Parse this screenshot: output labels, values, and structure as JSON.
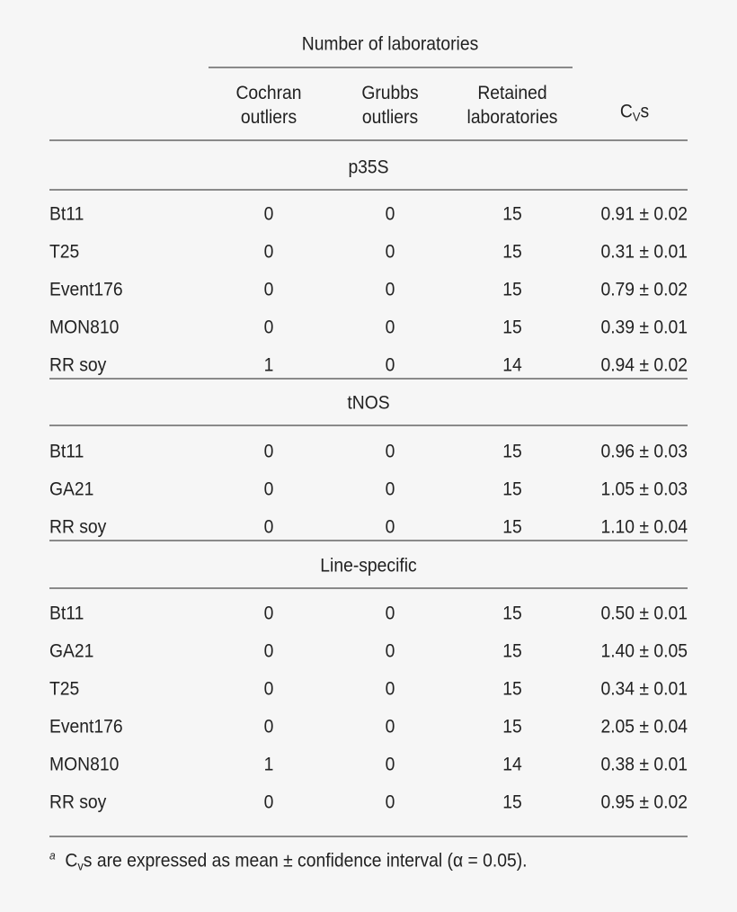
{
  "header": {
    "group_label": "Number of laboratories",
    "columns": [
      {
        "line1": "Cochran",
        "line2": "outliers"
      },
      {
        "line1": "Grubbs",
        "line2": "outliers"
      },
      {
        "line1": "Retained",
        "line2": "laboratories"
      }
    ],
    "cvs_main": "C",
    "cvs_sub": "V",
    "cvs_tail": "s"
  },
  "sections": [
    {
      "title": "p35S",
      "rows": [
        {
          "name": "Bt11",
          "cochran": "0",
          "grubbs": "0",
          "retained": "15",
          "cvs": "0.91 ± 0.02"
        },
        {
          "name": "T25",
          "cochran": "0",
          "grubbs": "0",
          "retained": "15",
          "cvs": "0.31 ± 0.01"
        },
        {
          "name": "Event176",
          "cochran": "0",
          "grubbs": "0",
          "retained": "15",
          "cvs": "0.79 ± 0.02"
        },
        {
          "name": "MON810",
          "cochran": "0",
          "grubbs": "0",
          "retained": "15",
          "cvs": "0.39 ± 0.01"
        },
        {
          "name": "RR soy",
          "cochran": "1",
          "grubbs": "0",
          "retained": "14",
          "cvs": "0.94 ± 0.02"
        }
      ]
    },
    {
      "title": "tNOS",
      "rows": [
        {
          "name": "Bt11",
          "cochran": "0",
          "grubbs": "0",
          "retained": "15",
          "cvs": "0.96 ± 0.03"
        },
        {
          "name": "GA21",
          "cochran": "0",
          "grubbs": "0",
          "retained": "15",
          "cvs": "1.05 ± 0.03"
        },
        {
          "name": "RR soy",
          "cochran": "0",
          "grubbs": "0",
          "retained": "15",
          "cvs": "1.10 ± 0.04"
        }
      ]
    },
    {
      "title": "Line-specific",
      "rows": [
        {
          "name": "Bt11",
          "cochran": "0",
          "grubbs": "0",
          "retained": "15",
          "cvs": "0.50 ± 0.01"
        },
        {
          "name": "GA21",
          "cochran": "0",
          "grubbs": "0",
          "retained": "15",
          "cvs": "1.40 ± 0.05"
        },
        {
          "name": "T25",
          "cochran": "0",
          "grubbs": "0",
          "retained": "15",
          "cvs": "0.34 ± 0.01"
        },
        {
          "name": "Event176",
          "cochran": "0",
          "grubbs": "0",
          "retained": "15",
          "cvs": "2.05 ± 0.04"
        },
        {
          "name": "MON810",
          "cochran": "1",
          "grubbs": "0",
          "retained": "14",
          "cvs": "0.38 ± 0.01"
        },
        {
          "name": "RR soy",
          "cochran": "0",
          "grubbs": "0",
          "retained": "15",
          "cvs": "0.95 ± 0.02"
        }
      ]
    }
  ],
  "footnote": {
    "marker": "a",
    "cv_main": "C",
    "cv_sub": "v",
    "text": "s are expressed as mean ± confidence interval (α = 0.05)."
  }
}
